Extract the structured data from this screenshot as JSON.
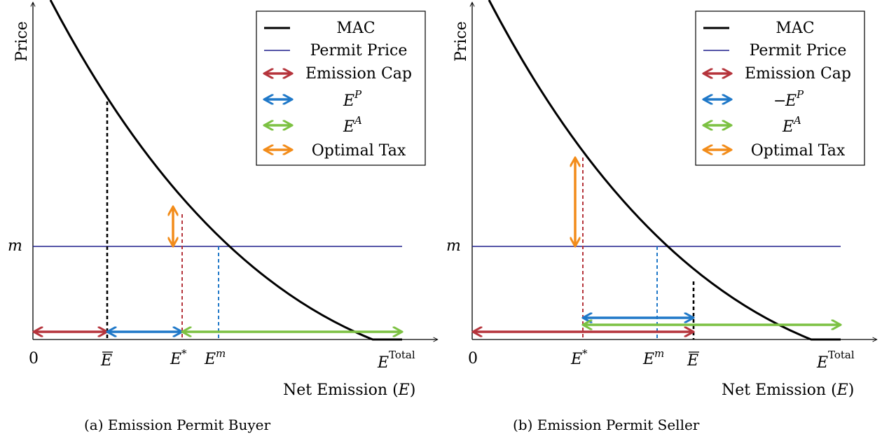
{
  "colors": {
    "curve": "#000000",
    "permit_price": "#1f1f8c",
    "emission_cap": "#b5343c",
    "ep": "#1f78c8",
    "ea": "#7cc142",
    "tax": "#f28c1a",
    "dash_black": "#000000"
  },
  "legend_labels": {
    "mac": "MAC",
    "permit_price": "Permit Price",
    "emission_cap": "Emission Cap",
    "optimal_tax": "Optimal Tax"
  },
  "axis": {
    "y_label": "Price",
    "x_label_prefix": "Net Emission (",
    "x_label_var": "E",
    "x_label_suffix": ")",
    "m": "m",
    "zero": "0",
    "e": "E",
    "star": "*",
    "m_sup": "m",
    "total_sup": "Total",
    "p_sup": "P",
    "a_sup": "A",
    "minus": "−"
  },
  "panels": [
    {
      "id": "a",
      "caption": "(a) Emission Permit Buyer",
      "legend_ep_prefix": ""
    },
    {
      "id": "b",
      "caption": "(b) Emission Permit Seller",
      "legend_ep_prefix": "−"
    }
  ]
}
